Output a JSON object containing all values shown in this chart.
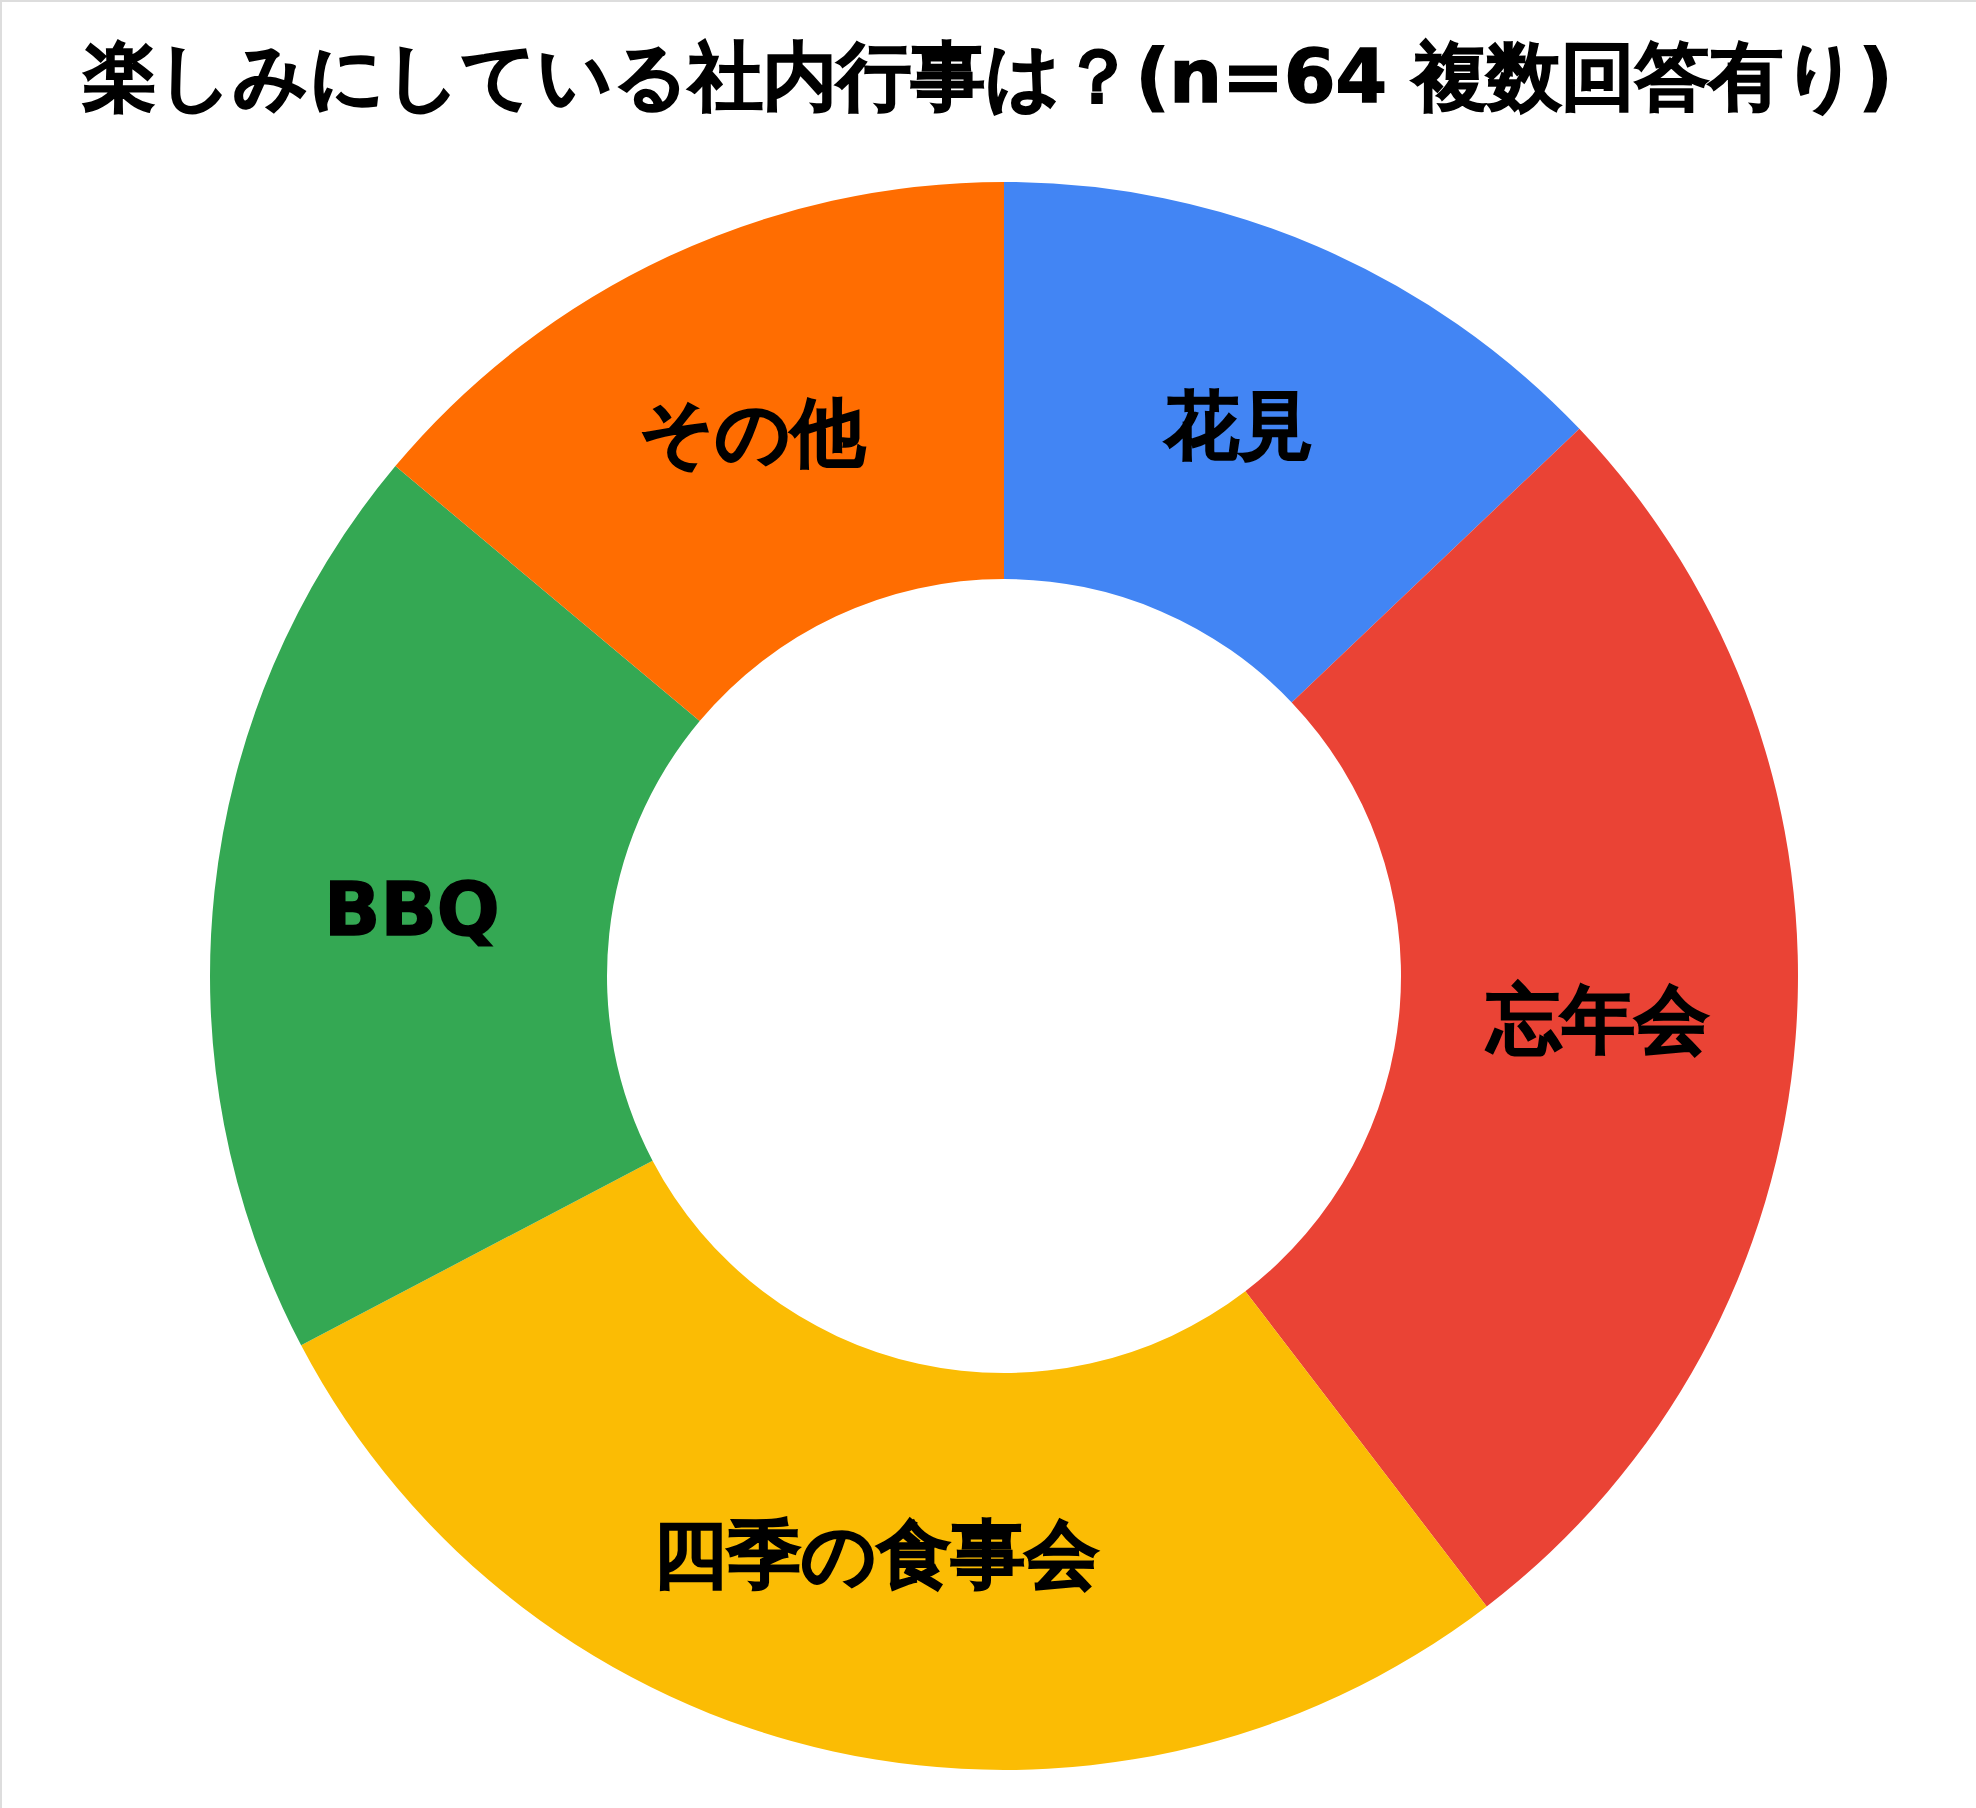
{
  "chart_data": {
    "type": "donut",
    "title": "楽しみにしている社内行事は？(n=64 複数回答有り)",
    "categories": [
      "花見",
      "忘年会",
      "四季の食事会",
      "BBQ",
      "その他"
    ],
    "values": [
      12.9,
      26.7,
      27.7,
      18.8,
      13.9
    ],
    "colors": [
      "#4285f4",
      "#ea4335",
      "#fbbc04",
      "#34a853",
      "#ff6d01"
    ]
  }
}
